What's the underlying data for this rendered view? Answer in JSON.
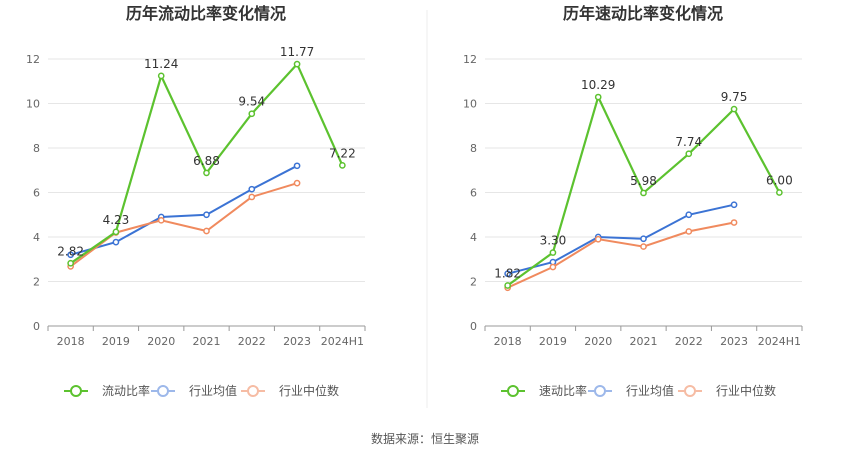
{
  "chart_data": [
    {
      "type": "line",
      "title": "历年流动比率变化情况",
      "categories": [
        "2018",
        "2019",
        "2020",
        "2021",
        "2022",
        "2023",
        "2024H1"
      ],
      "ylim": [
        0,
        12
      ],
      "yticks": [
        0,
        2,
        4,
        6,
        8,
        10,
        12
      ],
      "grid": true,
      "legend_position": "bottom",
      "series": [
        {
          "name": "流动比率",
          "color": "#5cc22f",
          "values": [
            2.82,
            4.23,
            11.24,
            6.88,
            9.54,
            11.77,
            7.22
          ],
          "labels": [
            "2.82",
            "4.23",
            "11.24",
            "6.88",
            "9.54",
            "11.77",
            "7.22"
          ]
        },
        {
          "name": "行业均值",
          "color": "#3b73d4",
          "values": [
            3.2,
            3.77,
            4.9,
            5.0,
            6.15,
            7.2,
            null
          ]
        },
        {
          "name": "行业中位数",
          "color": "#f08a5e",
          "values": [
            2.68,
            4.2,
            4.75,
            4.27,
            5.8,
            6.42,
            null
          ]
        }
      ]
    },
    {
      "type": "line",
      "title": "历年速动比率变化情况",
      "categories": [
        "2018",
        "2019",
        "2020",
        "2021",
        "2022",
        "2023",
        "2024H1"
      ],
      "ylim": [
        0,
        12
      ],
      "yticks": [
        0,
        2,
        4,
        6,
        8,
        10,
        12
      ],
      "grid": true,
      "legend_position": "bottom",
      "series": [
        {
          "name": "速动比率",
          "color": "#5cc22f",
          "values": [
            1.82,
            3.3,
            10.29,
            5.98,
            7.74,
            9.75,
            6.0
          ],
          "labels": [
            "1.82",
            "3.30",
            "10.29",
            "5.98",
            "7.74",
            "9.75",
            "6.00"
          ]
        },
        {
          "name": "行业均值",
          "color": "#3b73d4",
          "values": [
            2.35,
            2.87,
            4.0,
            3.92,
            5.0,
            5.45,
            null
          ]
        },
        {
          "name": "行业中位数",
          "color": "#f08a5e",
          "values": [
            1.72,
            2.65,
            3.9,
            3.57,
            4.25,
            4.65,
            null
          ]
        }
      ]
    }
  ],
  "footer": {
    "source": "数据来源：恒生聚源"
  }
}
